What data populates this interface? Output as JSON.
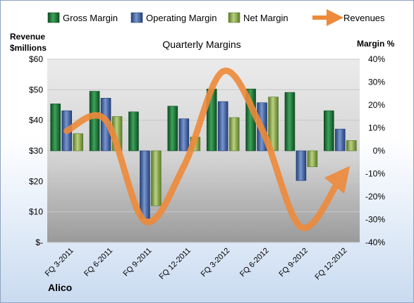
{
  "chart_data": {
    "type": "bar",
    "title": "Quarterly Margins",
    "company": "Alico",
    "categories": [
      "FQ 3-2011",
      "FQ 6-2011",
      "FQ 9-2011",
      "FQ 12-2011",
      "FQ 3-2012",
      "FQ 6-2012",
      "FQ 9-2012",
      "FQ 12-2012"
    ],
    "y_left": {
      "label_line1": "Revenue",
      "label_line2": "$millions",
      "range": [
        0,
        60
      ],
      "ticks": [
        0,
        10,
        20,
        30,
        40,
        50,
        60
      ],
      "tick_labels": [
        "$-",
        "$10",
        "$20",
        "$30",
        "$40",
        "$50",
        "$60"
      ]
    },
    "y_right": {
      "label": "Margin %",
      "range": [
        -40,
        40
      ],
      "ticks": [
        -40,
        -30,
        -20,
        -10,
        0,
        10,
        20,
        30,
        40
      ],
      "tick_labels": [
        "-40%",
        "-30%",
        "-20%",
        "-10%",
        "0%",
        "10%",
        "20%",
        "30%",
        "40%"
      ]
    },
    "series": [
      {
        "name": "Gross Margin",
        "axis": "right",
        "color": "#1e7a3c",
        "values": [
          20.5,
          26,
          17,
          19.5,
          27,
          27,
          25.5,
          17.5
        ]
      },
      {
        "name": "Operating Margin",
        "axis": "right",
        "color": "#4a6fb0",
        "values": [
          17.5,
          23,
          -29.5,
          14,
          21.5,
          21,
          -13,
          9.5
        ]
      },
      {
        "name": "Net Margin",
        "axis": "right",
        "color": "#8aaa4e",
        "values": [
          7.5,
          15,
          -24,
          6,
          14.5,
          23.5,
          -7,
          4.5
        ]
      },
      {
        "name": "Revenues",
        "axis": "left",
        "type": "line",
        "color": "#ee8a3a",
        "values": [
          36.5,
          40,
          7,
          25,
          56,
          37,
          5,
          21
        ]
      }
    ],
    "grid": true,
    "legend_position": "top"
  }
}
